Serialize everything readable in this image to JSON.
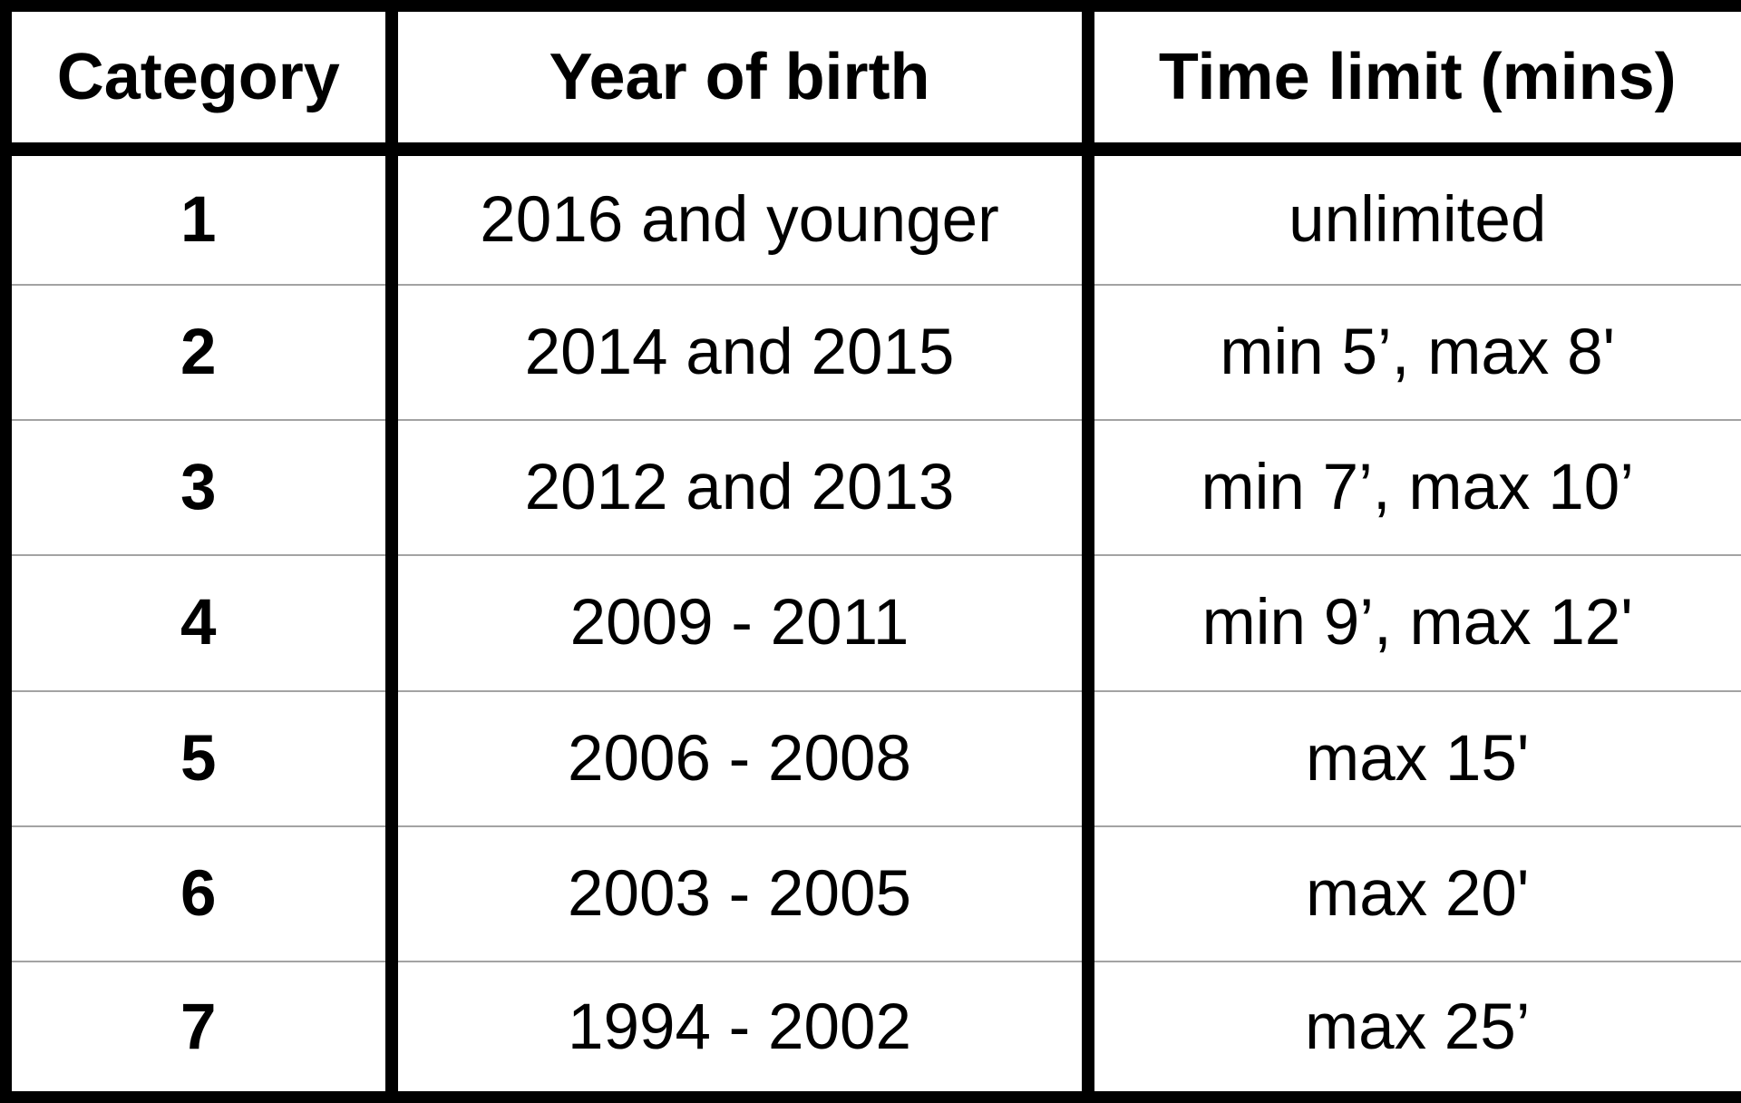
{
  "table": {
    "headers": [
      "Category",
      "Year of birth",
      "Time limit (mins)"
    ],
    "rows": [
      {
        "category": "1",
        "year_of_birth": "2016 and younger",
        "time_limit": "unlimited"
      },
      {
        "category": "2",
        "year_of_birth": "2014 and 2015",
        "time_limit": "min 5’, max 8'"
      },
      {
        "category": "3",
        "year_of_birth": "2012 and 2013",
        "time_limit": "min 7’, max 10’"
      },
      {
        "category": "4",
        "year_of_birth": "2009 - 2011",
        "time_limit": "min 9’, max 12'"
      },
      {
        "category": "5",
        "year_of_birth": "2006 - 2008",
        "time_limit": "max 15'"
      },
      {
        "category": "6",
        "year_of_birth": "2003 - 2005",
        "time_limit": "max 20'"
      },
      {
        "category": "7",
        "year_of_birth": "1994 - 2002",
        "time_limit": "max 25’"
      }
    ]
  },
  "colors": {
    "border": "#000000",
    "row_divider": "#a3a3a3",
    "background": "#ffffff",
    "text": "#000000"
  }
}
